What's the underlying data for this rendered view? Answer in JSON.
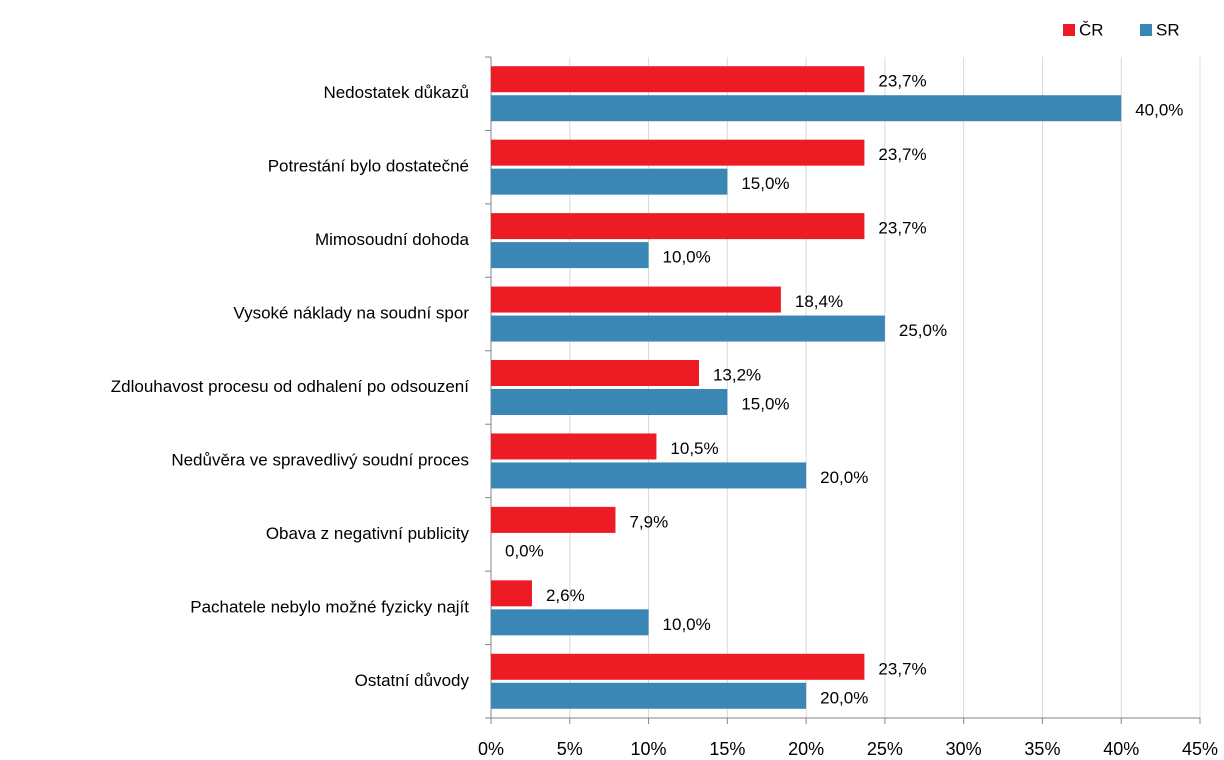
{
  "chart_data": {
    "type": "hbar",
    "categories": [
      "Nedostatek důkazů",
      "Potrestání bylo dostatečné",
      "Mimosoudní dohoda",
      "Vysoké náklady na soudní spor",
      "Zdlouhavost procesu od odhalení po odsouzení",
      "Nedůvěra ve spravedlivý soudní proces",
      "Obava z negativní publicity",
      "Pachatele nebylo možné fyzicky najít",
      "Ostatní důvody"
    ],
    "series": [
      {
        "name": "ČR",
        "color": "#ed1c24",
        "values": [
          23.7,
          23.7,
          23.7,
          18.4,
          13.2,
          10.5,
          7.9,
          2.6,
          23.7
        ],
        "value_labels": [
          "23,7%",
          "23,7%",
          "23,7%",
          "18,4%",
          "13,2%",
          "10,5%",
          "7,9%",
          "2,6%",
          "23,7%"
        ]
      },
      {
        "name": "SR",
        "color": "#3a87b5",
        "values": [
          40.0,
          15.0,
          10.0,
          25.0,
          15.0,
          20.0,
          0.0,
          10.0,
          20.0
        ],
        "value_labels": [
          "40,0%",
          "15,0%",
          "10,0%",
          "25,0%",
          "15,0%",
          "20,0%",
          "0,0%",
          "10,0%",
          "20,0%"
        ]
      }
    ],
    "xlim": [
      0,
      45
    ],
    "xticks": [
      {
        "value": 0,
        "label": "0%"
      },
      {
        "value": 5,
        "label": "5%"
      },
      {
        "value": 10,
        "label": "10%"
      },
      {
        "value": 15,
        "label": "15%"
      },
      {
        "value": 20,
        "label": "20%"
      },
      {
        "value": 25,
        "label": "25%"
      },
      {
        "value": 30,
        "label": "30%"
      },
      {
        "value": 35,
        "label": "35%"
      },
      {
        "value": 40,
        "label": "40%"
      },
      {
        "value": 45,
        "label": "45%"
      }
    ],
    "grid": true,
    "legend": "top-right"
  }
}
